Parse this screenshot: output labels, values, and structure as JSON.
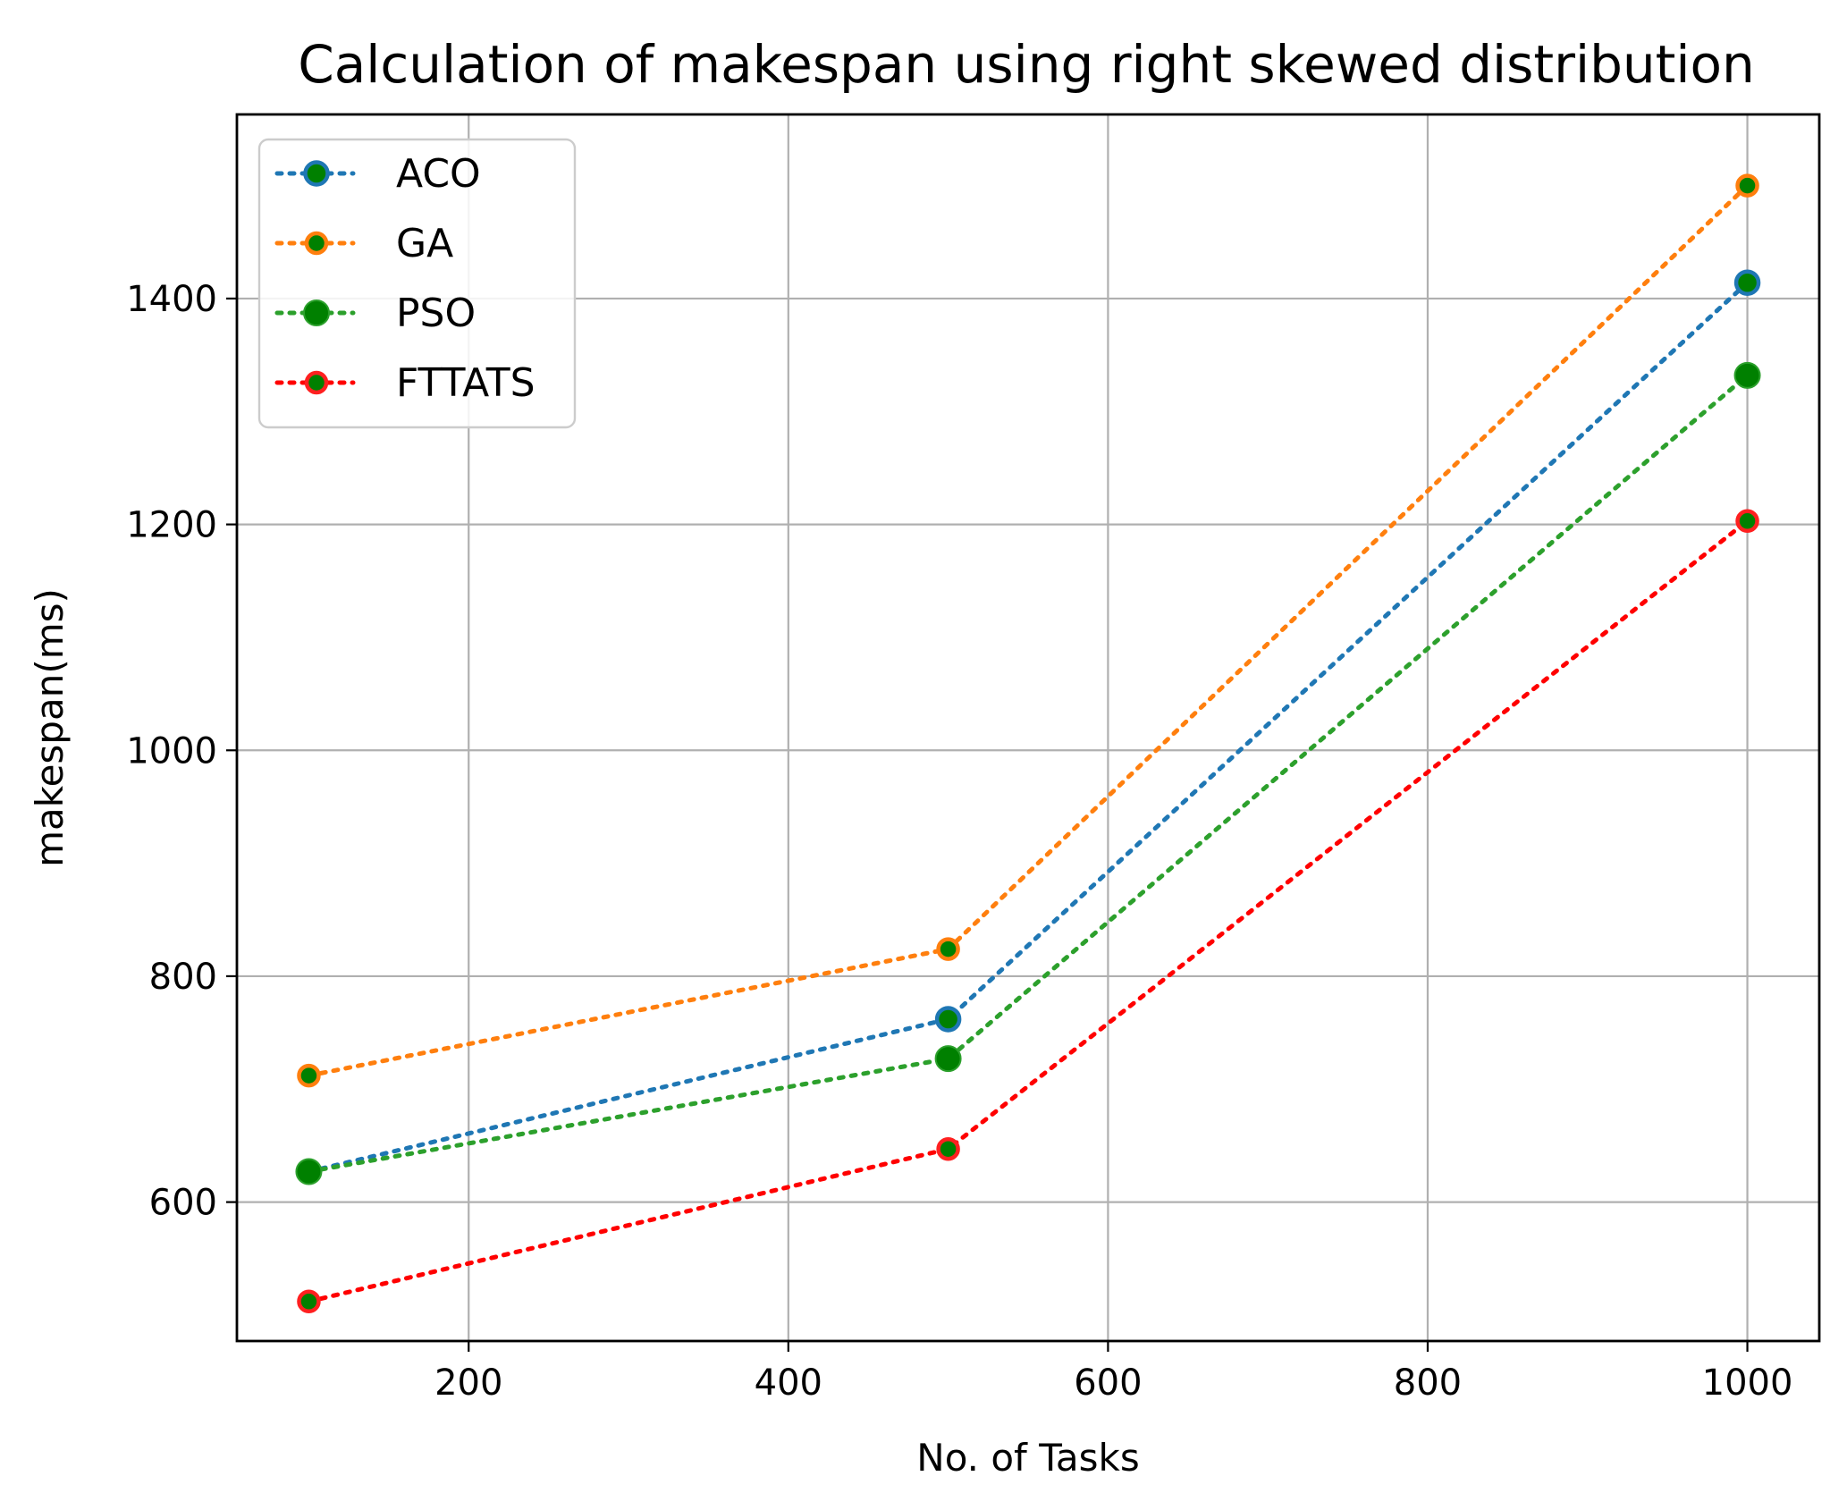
{
  "chart_data": {
    "type": "line",
    "title": "Calculation of makespan using right skewed distribution",
    "xlabel": "No. of Tasks",
    "ylabel": "makespan(ms)",
    "x": [
      100,
      500,
      1000
    ],
    "xlim": [
      55,
      1045
    ],
    "ylim": [
      477,
      1563
    ],
    "xticks": [
      200,
      400,
      600,
      800,
      1000
    ],
    "yticks": [
      600,
      800,
      1000,
      1200,
      1400
    ],
    "grid": true,
    "legend_position": "top-left",
    "series": [
      {
        "name": "ACO",
        "line_color": "#1f77b4",
        "marker_edge": "#1f77b4",
        "marker_face": "#008000",
        "values": [
          627,
          762,
          1414
        ]
      },
      {
        "name": "GA",
        "line_color": "#ff7f0e",
        "marker_edge": "#ff7f0e",
        "marker_face": "#008000",
        "values": [
          712,
          824,
          1500
        ]
      },
      {
        "name": "PSO",
        "line_color": "#2ca02c",
        "marker_edge": "#2ca02c",
        "marker_face": "#008000",
        "values": [
          627,
          727,
          1332
        ]
      },
      {
        "name": "FTTATS",
        "line_color": "#ff0000",
        "marker_edge": "#ff2020",
        "marker_face": "#008000",
        "values": [
          512,
          647,
          1203
        ]
      }
    ]
  }
}
